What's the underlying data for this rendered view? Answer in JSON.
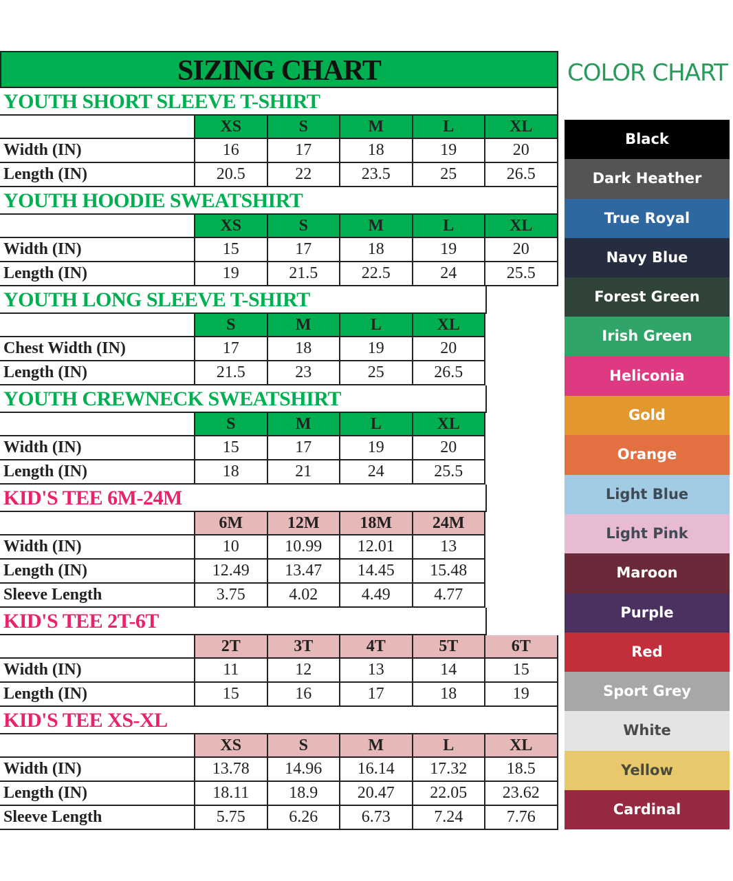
{
  "sizing_chart": {
    "title": "SIZING CHART",
    "colors": {
      "green": "#00b050",
      "pink_text": "#e8226b",
      "pink_header": "#e6b8b7"
    },
    "sections": [
      {
        "title": "YOUTH SHORT SLEEVE T-SHIRT",
        "theme": "green",
        "full_title_width": true,
        "sizes": [
          "XS",
          "S",
          "M",
          "L",
          "XL"
        ],
        "rows": [
          {
            "label": "Width (IN)",
            "values": [
              "16",
              "17",
              "18",
              "19",
              "20"
            ]
          },
          {
            "label": "Length (IN)",
            "values": [
              "20.5",
              "22",
              "23.5",
              "25",
              "26.5"
            ]
          }
        ]
      },
      {
        "title": "YOUTH HOODIE SWEATSHIRT",
        "theme": "green",
        "full_title_width": true,
        "sizes": [
          "XS",
          "S",
          "M",
          "L",
          "XL"
        ],
        "rows": [
          {
            "label": "Width (IN)",
            "values": [
              "15",
              "17",
              "18",
              "19",
              "20"
            ]
          },
          {
            "label": "Length (IN)",
            "values": [
              "19",
              "21.5",
              "22.5",
              "24",
              "25.5"
            ]
          }
        ]
      },
      {
        "title": "YOUTH LONG SLEEVE T-SHIRT",
        "theme": "green",
        "full_title_width": false,
        "sizes": [
          "S",
          "M",
          "L",
          "XL"
        ],
        "rows": [
          {
            "label": "Chest Width (IN)",
            "values": [
              "17",
              "18",
              "19",
              "20"
            ]
          },
          {
            "label": "Length (IN)",
            "values": [
              "21.5",
              "23",
              "25",
              "26.5"
            ]
          }
        ]
      },
      {
        "title": "YOUTH CREWNECK SWEATSHIRT",
        "theme": "green",
        "full_title_width": false,
        "sizes": [
          "S",
          "M",
          "L",
          "XL"
        ],
        "rows": [
          {
            "label": "Width (IN)",
            "values": [
              "15",
              "17",
              "19",
              "20"
            ]
          },
          {
            "label": "Length (IN)",
            "values": [
              "18",
              "21",
              "24",
              "25.5"
            ]
          }
        ]
      },
      {
        "title": "KID'S TEE 6M-24M",
        "theme": "pink",
        "full_title_width": false,
        "sizes": [
          "6M",
          "12M",
          "18M",
          "24M"
        ],
        "rows": [
          {
            "label": "Width (IN)",
            "values": [
              "10",
              "10.99",
              "12.01",
              "13"
            ]
          },
          {
            "label": "Length (IN)",
            "values": [
              "12.49",
              "13.47",
              "14.45",
              "15.48"
            ]
          },
          {
            "label": "Sleeve Length",
            "values": [
              "3.75",
              "4.02",
              "4.49",
              "4.77"
            ]
          }
        ]
      },
      {
        "title": "KID'S TEE 2T-6T",
        "theme": "pink",
        "full_title_width": false,
        "sizes": [
          "2T",
          "3T",
          "4T",
          "5T",
          "6T"
        ],
        "rows": [
          {
            "label": "Width (IN)",
            "values": [
              "11",
              "12",
              "13",
              "14",
              "15"
            ]
          },
          {
            "label": "Length (IN)",
            "values": [
              "15",
              "16",
              "17",
              "18",
              "19"
            ]
          }
        ]
      },
      {
        "title": "KID'S TEE XS-XL",
        "theme": "pink",
        "full_title_width": true,
        "sizes": [
          "XS",
          "S",
          "M",
          "L",
          "XL"
        ],
        "rows": [
          {
            "label": "Width (IN)",
            "values": [
              "13.78",
              "14.96",
              "16.14",
              "17.32",
              "18.5"
            ]
          },
          {
            "label": "Length (IN)",
            "values": [
              "18.11",
              "18.9",
              "20.47",
              "22.05",
              "23.62"
            ]
          },
          {
            "label": "Sleeve Length",
            "values": [
              "5.75",
              "6.26",
              "6.73",
              "7.24",
              "7.76"
            ]
          }
        ]
      }
    ]
  },
  "color_chart": {
    "title": "COLOR CHART",
    "title_color": "#2a9a5c",
    "swatches": [
      {
        "name": "Black",
        "bg": "#000000",
        "fg": "#ffffff"
      },
      {
        "name": "Dark Heather",
        "bg": "#545454",
        "fg": "#ffffff"
      },
      {
        "name": "True Royal",
        "bg": "#2f67a0",
        "fg": "#ffffff"
      },
      {
        "name": "Navy Blue",
        "bg": "#272d40",
        "fg": "#ffffff"
      },
      {
        "name": "Forest Green",
        "bg": "#2f4338",
        "fg": "#ffffff"
      },
      {
        "name": "Irish Green",
        "bg": "#2fa56a",
        "fg": "#ffffff"
      },
      {
        "name": "Heliconia",
        "bg": "#dd3a82",
        "fg": "#ffffff"
      },
      {
        "name": "Gold",
        "bg": "#e2982e",
        "fg": "#ffffff"
      },
      {
        "name": "Orange",
        "bg": "#e27040",
        "fg": "#ffffff"
      },
      {
        "name": "Light Blue",
        "bg": "#a2cbe4",
        "fg": "#3f4a55"
      },
      {
        "name": "Light Pink",
        "bg": "#e7bcd3",
        "fg": "#3f4a55"
      },
      {
        "name": "Maroon",
        "bg": "#6b2a3a",
        "fg": "#ffffff"
      },
      {
        "name": "Purple",
        "bg": "#4b3160",
        "fg": "#ffffff"
      },
      {
        "name": "Red",
        "bg": "#c22f3a",
        "fg": "#ffffff"
      },
      {
        "name": "Sport Grey",
        "bg": "#a6a7a9",
        "fg": "#ffffff"
      },
      {
        "name": "White",
        "bg": "#e4e4e4",
        "fg": "#4a4a4a"
      },
      {
        "name": "Yellow",
        "bg": "#e8c86a",
        "fg": "#4a4a3a"
      },
      {
        "name": "Cardinal",
        "bg": "#962840",
        "fg": "#ffffff"
      }
    ]
  }
}
